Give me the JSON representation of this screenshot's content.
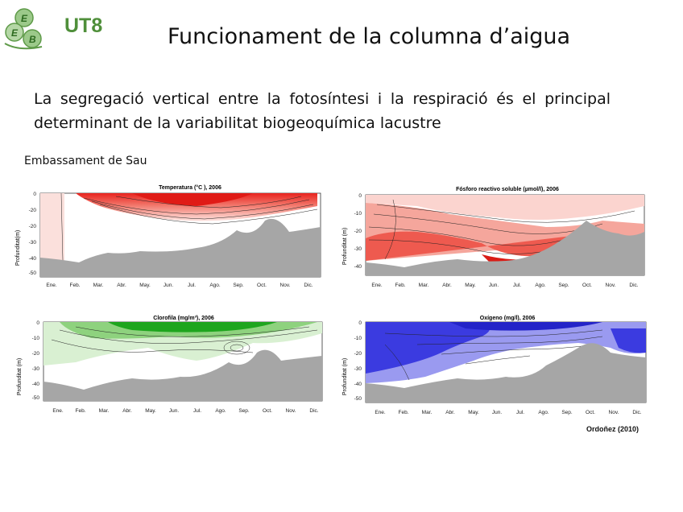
{
  "header": {
    "logo_letters": [
      "E",
      "E",
      "B"
    ],
    "brand": "UT8",
    "title": "Funcionament de la columna d’aigua"
  },
  "intro": {
    "text": "La segregació vertical entre la fotosíntesi i la respiració és el principal determinant de la variabilitat biogeoquímica lacustre"
  },
  "site_label": "Embassament de Sau",
  "panels": [
    {
      "title": "Temperatura (°C ), 2006",
      "ylabel": "Profunditat(m)",
      "yticks": [
        "0",
        "-20",
        "-20",
        "-30",
        "-40",
        "-50"
      ],
      "months": [
        "Ene.",
        "Feb.",
        "Mar.",
        "Abr.",
        "May.",
        "Jun.",
        "Jul.",
        "Ago.",
        "Sep.",
        "Oct.",
        "Nov.",
        "Dic."
      ],
      "color": "#e8231e"
    },
    {
      "title": "Fósforo reactivo soluble (µmol/l), 2006",
      "ylabel": "Profunditat (m)",
      "yticks": [
        "0",
        "-10",
        "-20",
        "-30",
        "-40"
      ],
      "months": [
        "Ene.",
        "Feb.",
        "Mar.",
        "Abr.",
        "May.",
        "Jun.",
        "Jul.",
        "Ago.",
        "Sep.",
        "Oct.",
        "Nov.",
        "Dic."
      ],
      "color": "#e8231e"
    },
    {
      "title": "Clorofila (mg/m³), 2006",
      "ylabel": "Profunditat (m)",
      "yticks": [
        "0",
        "-10",
        "-20",
        "-30",
        "-40",
        "-50"
      ],
      "months": [
        "Ene.",
        "Feb.",
        "Mar.",
        "Abr.",
        "May.",
        "Jun.",
        "Jul.",
        "Ago.",
        "Sep.",
        "Oct.",
        "Nov.",
        "Dic."
      ],
      "color": "#1aa01a"
    },
    {
      "title": "Oxígeno (mg/l), 2006",
      "ylabel": "Profunditat (m)",
      "yticks": [
        "0",
        "-10",
        "-20",
        "-30",
        "-40",
        "-50"
      ],
      "months": [
        "Ene.",
        "Feb.",
        "Mar.",
        "Abr.",
        "May.",
        "Jun.",
        "Jul.",
        "Ago.",
        "Sep.",
        "Oct.",
        "Nov.",
        "Dic."
      ],
      "color": "#2a2ad8"
    }
  ],
  "credit": "Ordoñez  (2010)"
}
